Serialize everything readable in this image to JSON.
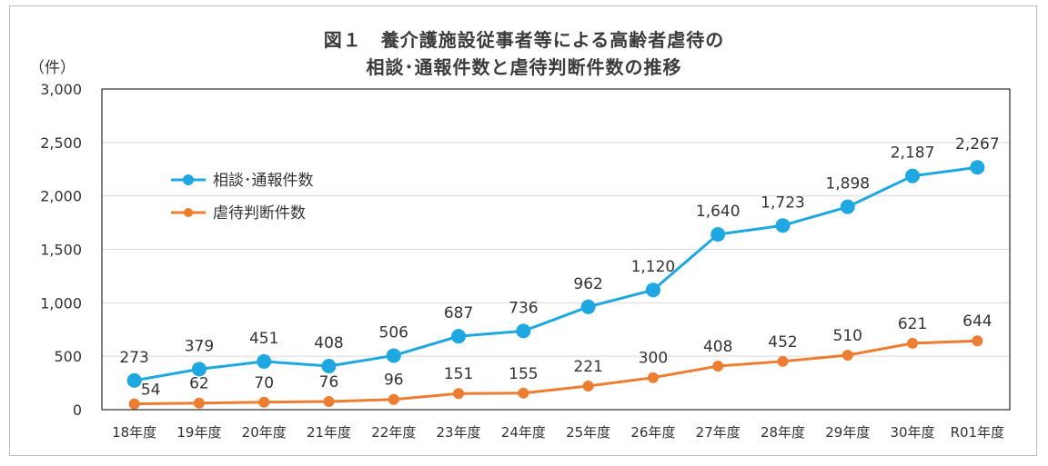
{
  "chart_data": {
    "type": "line",
    "title": "図１　養介護施設従事者等による高齢者虐待の",
    "subtitle": "相談･通報件数と虐待判断件数の推移",
    "ylabel": "（件）",
    "xlabel": "",
    "ylim": [
      0,
      3000
    ],
    "yticks": [
      "0",
      "500",
      "1,000",
      "1,500",
      "2,000",
      "2,500",
      "3,000"
    ],
    "categories": [
      "18年度",
      "19年度",
      "20年度",
      "21年度",
      "22年度",
      "23年度",
      "24年度",
      "25年度",
      "26年度",
      "27年度",
      "28年度",
      "29年度",
      "30年度",
      "R01年度"
    ],
    "grid": true,
    "legend_position": "upper-left",
    "series": [
      {
        "name": "相談･通報件数",
        "color": "#1ea7e1",
        "values": [
          273,
          379,
          451,
          408,
          506,
          687,
          736,
          962,
          1120,
          1640,
          1723,
          1898,
          2187,
          2267
        ],
        "labels": [
          "273",
          "379",
          "451",
          "408",
          "506",
          "687",
          "736",
          "962",
          "1,120",
          "1,640",
          "1,723",
          "1,898",
          "2,187",
          "2,267"
        ]
      },
      {
        "name": "虐待判断件数",
        "color": "#ed7d31",
        "values": [
          54,
          62,
          70,
          76,
          96,
          151,
          155,
          221,
          300,
          408,
          452,
          510,
          621,
          644
        ],
        "labels": [
          "54",
          "62",
          "70",
          "76",
          "96",
          "151",
          "155",
          "221",
          "300",
          "408",
          "452",
          "510",
          "621",
          "644"
        ]
      }
    ]
  }
}
